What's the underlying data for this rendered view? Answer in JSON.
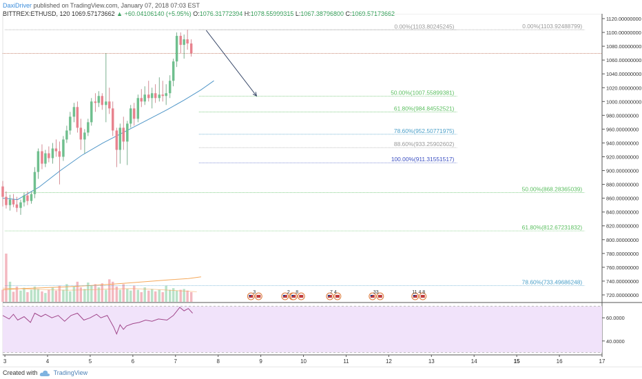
{
  "header": {
    "author": "DaxiDriver",
    "published_text": "published on TradingView.com, January 07, 2018 07:03 EST",
    "symbol": "BITTREX:ETHUSD, 120",
    "last_price": "1069.57173662",
    "change": "+60.04106140 (+5.95%)",
    "open_label": "O:",
    "open": "1076.31772394",
    "high_label": "H:",
    "high": "1078.55999315",
    "low_label": "L:",
    "low": "1067.38796800",
    "close_label": "C:",
    "close": "1069.57173662"
  },
  "footer": {
    "created_with": "Created with",
    "brand": "TradingView"
  },
  "colors": {
    "up": "#6fbf8e",
    "down": "#e8828e",
    "vol_up": "#b9e2c8",
    "vol_down": "#f3b8c0",
    "ma_blue": "#4f96c8",
    "ma_orange": "#f5a85a",
    "rsi_line": "#a0468a",
    "rsi_band": "#f1e3fa"
  },
  "chart_data": {
    "type": "candlestick",
    "x_ticks": [
      {
        "day": 3,
        "label": "3"
      },
      {
        "day": 4,
        "label": "4"
      },
      {
        "day": 5,
        "label": "5"
      },
      {
        "day": 6,
        "label": "6"
      },
      {
        "day": 7,
        "label": "7"
      },
      {
        "day": 8,
        "label": "8"
      },
      {
        "day": 9,
        "label": "9"
      },
      {
        "day": 10,
        "label": "10"
      },
      {
        "day": 11,
        "label": "11"
      },
      {
        "day": 12,
        "label": "12"
      },
      {
        "day": 13,
        "label": "13"
      },
      {
        "day": 14,
        "label": "14"
      },
      {
        "day": 15,
        "label": "15"
      },
      {
        "day": 16,
        "label": "16"
      },
      {
        "day": 17,
        "label": "17"
      }
    ],
    "xlim": [
      2.95,
      17.0
    ],
    "price_axis": {
      "ylim": [
        710,
        1125
      ],
      "ticks": [
        "1120.00000000",
        "1100.00000000",
        "1080.00000000",
        "1060.00000000",
        "1040.00000000",
        "1020.00000000",
        "1000.00000000",
        "980.00000000",
        "960.00000000",
        "940.00000000",
        "920.00000000",
        "900.00000000",
        "880.00000000",
        "860.00000000",
        "840.00000000",
        "820.00000000",
        "800.00000000",
        "780.00000000",
        "760.00000000",
        "740.00000000",
        "720.00000000"
      ],
      "current_price": 1069.57
    },
    "rsi_axis": {
      "ylim": [
        28,
        72
      ],
      "ticks": [
        "60.0000",
        "40.0000"
      ],
      "band": [
        30,
        70
      ]
    },
    "volume_ylim": [
      0,
      120
    ],
    "candles": [
      [
        2.95,
        877,
        885,
        848,
        862
      ],
      [
        3.03,
        862,
        870,
        845,
        850
      ],
      [
        3.12,
        850,
        865,
        842,
        858
      ],
      [
        3.2,
        858,
        866,
        847,
        851
      ],
      [
        3.28,
        851,
        862,
        840,
        846
      ],
      [
        3.37,
        846,
        858,
        836,
        854
      ],
      [
        3.45,
        854,
        868,
        848,
        864
      ],
      [
        3.53,
        864,
        870,
        850,
        856
      ],
      [
        3.62,
        856,
        870,
        852,
        866
      ],
      [
        3.7,
        866,
        905,
        860,
        898
      ],
      [
        3.78,
        898,
        932,
        888,
        928
      ],
      [
        3.87,
        928,
        938,
        902,
        910
      ],
      [
        3.95,
        910,
        930,
        905,
        925
      ],
      [
        4.03,
        925,
        935,
        912,
        918
      ],
      [
        4.12,
        918,
        940,
        910,
        932
      ],
      [
        4.2,
        932,
        945,
        920,
        928
      ],
      [
        4.28,
        928,
        942,
        880,
        920
      ],
      [
        4.37,
        920,
        950,
        914,
        945
      ],
      [
        4.45,
        945,
        965,
        940,
        958
      ],
      [
        4.53,
        958,
        985,
        952,
        978
      ],
      [
        4.62,
        978,
        998,
        970,
        992
      ],
      [
        4.7,
        992,
        1000,
        955,
        962
      ],
      [
        4.78,
        962,
        975,
        930,
        945
      ],
      [
        4.87,
        945,
        960,
        925,
        955
      ],
      [
        4.95,
        955,
        975,
        950,
        970
      ],
      [
        5.03,
        970,
        1005,
        965,
        1000
      ],
      [
        5.12,
        1000,
        1012,
        985,
        998
      ],
      [
        5.2,
        998,
        1015,
        992,
        1008
      ],
      [
        5.28,
        1008,
        1012,
        988,
        995
      ],
      [
        5.37,
        995,
        1070,
        970,
        1000
      ],
      [
        5.45,
        1000,
        1020,
        982,
        990
      ],
      [
        5.53,
        990,
        1000,
        950,
        958
      ],
      [
        5.62,
        958,
        962,
        905,
        930
      ],
      [
        5.7,
        930,
        968,
        910,
        962
      ],
      [
        5.78,
        962,
        978,
        930,
        942
      ],
      [
        5.87,
        942,
        972,
        908,
        968
      ],
      [
        5.95,
        968,
        995,
        962,
        990
      ],
      [
        6.03,
        990,
        998,
        965,
        975
      ],
      [
        6.12,
        975,
        1010,
        970,
        1005
      ],
      [
        6.2,
        1005,
        1018,
        992,
        1000
      ],
      [
        6.28,
        1000,
        1022,
        995,
        1010
      ],
      [
        6.37,
        1010,
        1030,
        1000,
        1005
      ],
      [
        6.45,
        1005,
        1020,
        990,
        1012
      ],
      [
        6.53,
        1012,
        1025,
        998,
        1005
      ],
      [
        6.62,
        1005,
        1035,
        1000,
        1010
      ],
      [
        6.7,
        1010,
        1030,
        1000,
        1008
      ],
      [
        6.78,
        1008,
        1025,
        995,
        1012
      ],
      [
        6.87,
        1012,
        1038,
        1005,
        1030
      ],
      [
        6.95,
        1030,
        1062,
        1022,
        1058
      ],
      [
        7.03,
        1058,
        1100,
        1050,
        1095
      ],
      [
        7.12,
        1095,
        1100,
        1070,
        1082
      ],
      [
        7.2,
        1082,
        1097,
        1062,
        1090
      ],
      [
        7.28,
        1090,
        1104,
        1075,
        1084
      ],
      [
        7.37,
        1084,
        1090,
        1065,
        1070
      ]
    ],
    "volume": [
      30,
      120,
      50,
      25,
      38,
      28,
      35,
      24,
      30,
      38,
      32,
      26,
      22,
      30,
      36,
      28,
      40,
      30,
      44,
      26,
      38,
      50,
      36,
      32,
      48,
      40,
      44,
      36,
      46,
      30,
      56,
      50,
      38,
      30,
      44,
      32,
      28,
      40,
      30,
      24,
      36,
      28,
      32,
      26,
      30,
      24,
      40,
      30,
      34,
      28,
      30,
      32,
      28,
      24
    ],
    "ma_blue": [
      [
        2.95,
        860
      ],
      [
        3.3,
        858
      ],
      [
        3.8,
        876
      ],
      [
        4.3,
        900
      ],
      [
        4.8,
        922
      ],
      [
        5.3,
        940
      ],
      [
        5.8,
        956
      ],
      [
        6.3,
        972
      ],
      [
        6.8,
        988
      ],
      [
        7.2,
        1002
      ],
      [
        7.6,
        1017
      ],
      [
        7.9,
        1030
      ]
    ],
    "ma_orange_volume": [
      [
        2.95,
        30
      ],
      [
        3.4,
        33
      ],
      [
        3.9,
        35
      ],
      [
        4.4,
        37
      ],
      [
        4.9,
        40
      ],
      [
        5.4,
        43
      ],
      [
        5.9,
        47
      ],
      [
        6.4,
        51
      ],
      [
        6.9,
        55
      ],
      [
        7.3,
        58
      ],
      [
        7.6,
        62
      ]
    ],
    "orange_vol_small": [
      [
        2.95,
        34
      ],
      [
        3.5,
        32
      ],
      [
        4.0,
        30
      ],
      [
        4.5,
        29
      ],
      [
        5.0,
        30
      ],
      [
        5.5,
        32
      ],
      [
        6.0,
        33
      ],
      [
        6.5,
        31
      ],
      [
        7.0,
        28
      ],
      [
        7.5,
        25
      ]
    ],
    "rsi": [
      [
        2.95,
        62
      ],
      [
        3.1,
        59
      ],
      [
        3.2,
        63
      ],
      [
        3.3,
        58
      ],
      [
        3.45,
        61
      ],
      [
        3.6,
        56
      ],
      [
        3.7,
        64
      ],
      [
        3.85,
        61
      ],
      [
        3.95,
        63
      ],
      [
        4.1,
        60
      ],
      [
        4.25,
        62
      ],
      [
        4.4,
        57
      ],
      [
        4.55,
        62
      ],
      [
        4.7,
        64
      ],
      [
        4.85,
        58
      ],
      [
        5.0,
        60
      ],
      [
        5.15,
        63
      ],
      [
        5.25,
        60
      ],
      [
        5.4,
        62
      ],
      [
        5.55,
        52
      ],
      [
        5.62,
        46
      ],
      [
        5.7,
        54
      ],
      [
        5.78,
        50
      ],
      [
        5.85,
        53
      ],
      [
        6.0,
        55
      ],
      [
        6.15,
        56
      ],
      [
        6.3,
        58
      ],
      [
        6.45,
        57
      ],
      [
        6.6,
        59
      ],
      [
        6.8,
        58
      ],
      [
        6.95,
        62
      ],
      [
        7.1,
        69
      ],
      [
        7.2,
        66
      ],
      [
        7.3,
        68
      ],
      [
        7.4,
        64
      ]
    ],
    "fib_left": {
      "x_range": [
        7.55,
        13.6
      ],
      "levels": [
        {
          "label": "0.00%(1103.80245245)",
          "price": 1103.8,
          "color": "#999999"
        },
        {
          "label": "50.00%(1007.55899381)",
          "price": 1007.56,
          "color": "#5bbf60"
        },
        {
          "label": "61.80%(984.84552521)",
          "price": 984.85,
          "color": "#5bbf60"
        },
        {
          "label": "78.60%(952.50771975)",
          "price": 952.51,
          "color": "#4a9fc8"
        },
        {
          "label": "88.60%(933.25902602)",
          "price": 933.26,
          "color": "#999999"
        },
        {
          "label": "100.00%(911.31551517)",
          "price": 911.32,
          "color": "#3b4fc2"
        }
      ]
    },
    "fib_right": {
      "x_range": [
        3.0,
        16.6
      ],
      "levels": [
        {
          "label": "0.00%(1103.92488799)",
          "price": 1103.92,
          "color": "#999999"
        },
        {
          "label": "50.00%(868.28365039)",
          "price": 868.28,
          "color": "#5bbf60"
        },
        {
          "label": "61.80%(812.67231832)",
          "price": 812.67,
          "color": "#5bbf60"
        },
        {
          "label": "78.60%(733.49686248)",
          "price": 733.5,
          "color": "#4a9fc8"
        }
      ]
    },
    "arrow": {
      "from": [
        7.72,
        1103
      ],
      "to": [
        8.9,
        1008
      ]
    },
    "events": [
      {
        "day": 8.85,
        "label": "3"
      },
      {
        "day": 9.65,
        "label": "2"
      },
      {
        "day": 9.85,
        "label": "8"
      },
      {
        "day": 10.7,
        "label": "7 4"
      },
      {
        "day": 11.7,
        "label": "33"
      },
      {
        "day": 12.7,
        "label": "11 4 8"
      }
    ]
  }
}
